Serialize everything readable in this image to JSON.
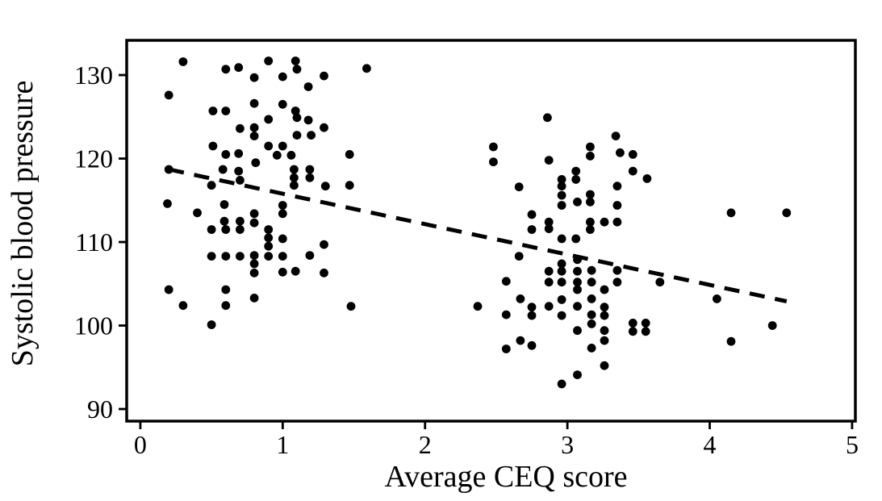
{
  "figure": {
    "background": "#ffffff",
    "ink_color": "#000000"
  },
  "chart_data": {
    "type": "scatter",
    "title": "",
    "xlabel": "Average CEQ score",
    "ylabel": "Systolic blood pressure",
    "x_ticks": [
      "0",
      "1",
      "2",
      "3",
      "4",
      "5"
    ],
    "x_tick_values": [
      0,
      1,
      2,
      3,
      4,
      5
    ],
    "y_ticks": [
      "90",
      "100",
      "110",
      "120",
      "130"
    ],
    "y_tick_values": [
      90,
      100,
      110,
      120,
      130
    ],
    "xlim": [
      -0.096,
      5.023
    ],
    "ylim": [
      88.55,
      134.16
    ],
    "grid": false,
    "legend": null,
    "marker": {
      "shape": "circle",
      "color": "#000000",
      "radius": 5.4
    },
    "trendline": {
      "style": "dashed",
      "color": "#000000",
      "width": 5,
      "dash": "19 13",
      "x1": 0.2,
      "y1": 118.7,
      "x2": 4.54,
      "y2": 102.9
    },
    "points": [
      [
        0.3,
        131.6
      ],
      [
        0.9,
        131.7
      ],
      [
        1.09,
        131.7
      ],
      [
        0.6,
        130.7
      ],
      [
        0.69,
        130.9
      ],
      [
        1.1,
        130.7
      ],
      [
        1.59,
        130.8
      ],
      [
        0.8,
        129.7
      ],
      [
        1.0,
        129.8
      ],
      [
        1.29,
        129.9
      ],
      [
        1.18,
        128.6
      ],
      [
        0.2,
        127.6
      ],
      [
        0.8,
        126.6
      ],
      [
        1.0,
        126.5
      ],
      [
        0.51,
        125.7
      ],
      [
        0.6,
        125.7
      ],
      [
        1.09,
        125.7
      ],
      [
        1.1,
        124.9
      ],
      [
        0.9,
        124.7
      ],
      [
        1.18,
        124.6
      ],
      [
        0.7,
        123.6
      ],
      [
        0.8,
        123.7
      ],
      [
        1.29,
        123.7
      ],
      [
        1.1,
        122.8
      ],
      [
        1.2,
        122.8
      ],
      [
        0.8,
        122.7
      ],
      [
        0.51,
        121.5
      ],
      [
        0.9,
        121.5
      ],
      [
        1.0,
        121.5
      ],
      [
        0.6,
        120.5
      ],
      [
        0.69,
        120.6
      ],
      [
        0.96,
        120.4
      ],
      [
        1.06,
        120.4
      ],
      [
        1.47,
        120.5
      ],
      [
        0.81,
        119.5
      ],
      [
        0.2,
        118.7
      ],
      [
        0.58,
        118.7
      ],
      [
        0.69,
        118.5
      ],
      [
        1.08,
        118.7
      ],
      [
        1.19,
        118.7
      ],
      [
        1.08,
        117.7
      ],
      [
        1.19,
        117.7
      ],
      [
        0.7,
        117.4
      ],
      [
        0.5,
        116.8
      ],
      [
        1.08,
        116.8
      ],
      [
        1.3,
        116.7
      ],
      [
        1.47,
        116.8
      ],
      [
        0.19,
        114.6
      ],
      [
        0.59,
        114.5
      ],
      [
        1.0,
        114.4
      ],
      [
        0.4,
        113.5
      ],
      [
        0.8,
        113.4
      ],
      [
        1.0,
        113.4
      ],
      [
        0.59,
        112.5
      ],
      [
        0.7,
        112.5
      ],
      [
        0.8,
        112.3
      ],
      [
        0.5,
        111.5
      ],
      [
        0.6,
        111.5
      ],
      [
        0.7,
        111.5
      ],
      [
        0.9,
        111.5
      ],
      [
        0.9,
        110.5
      ],
      [
        1.0,
        110.4
      ],
      [
        0.9,
        109.5
      ],
      [
        1.29,
        109.7
      ],
      [
        0.5,
        108.3
      ],
      [
        0.6,
        108.3
      ],
      [
        0.7,
        108.3
      ],
      [
        0.8,
        108.4
      ],
      [
        0.9,
        108.3
      ],
      [
        1.0,
        108.3
      ],
      [
        1.19,
        108.4
      ],
      [
        0.8,
        107.4
      ],
      [
        0.8,
        106.3
      ],
      [
        1.0,
        106.4
      ],
      [
        1.09,
        106.5
      ],
      [
        1.29,
        106.3
      ],
      [
        0.2,
        104.3
      ],
      [
        0.6,
        104.3
      ],
      [
        0.8,
        103.3
      ],
      [
        0.3,
        102.4
      ],
      [
        0.6,
        102.4
      ],
      [
        1.48,
        102.3
      ],
      [
        0.5,
        100.1
      ],
      [
        2.86,
        124.9
      ],
      [
        3.34,
        122.7
      ],
      [
        2.48,
        121.4
      ],
      [
        3.16,
        121.4
      ],
      [
        3.37,
        120.7
      ],
      [
        3.46,
        120.5
      ],
      [
        2.48,
        119.6
      ],
      [
        3.16,
        120.3
      ],
      [
        2.87,
        119.8
      ],
      [
        3.46,
        118.5
      ],
      [
        3.06,
        118.5
      ],
      [
        3.56,
        117.6
      ],
      [
        2.96,
        117.5
      ],
      [
        3.06,
        117.5
      ],
      [
        2.96,
        116.7
      ],
      [
        3.35,
        116.7
      ],
      [
        2.66,
        116.6
      ],
      [
        3.16,
        115.7
      ],
      [
        2.96,
        115.6
      ],
      [
        3.07,
        114.8
      ],
      [
        3.16,
        114.8
      ],
      [
        2.96,
        114.4
      ],
      [
        3.35,
        114.4
      ],
      [
        2.75,
        113.3
      ],
      [
        2.87,
        112.4
      ],
      [
        3.16,
        112.4
      ],
      [
        3.26,
        112.4
      ],
      [
        3.35,
        112.4
      ],
      [
        2.87,
        111.6
      ],
      [
        2.75,
        111.5
      ],
      [
        3.16,
        111.5
      ],
      [
        2.96,
        110.4
      ],
      [
        3.06,
        110.4
      ],
      [
        2.66,
        108.3
      ],
      [
        2.96,
        107.4
      ],
      [
        3.07,
        107.9
      ],
      [
        3.17,
        106.6
      ],
      [
        3.35,
        106.6
      ],
      [
        2.87,
        106.5
      ],
      [
        2.96,
        106.5
      ],
      [
        3.07,
        106.5
      ],
      [
        2.57,
        105.3
      ],
      [
        2.87,
        105.2
      ],
      [
        2.96,
        105.2
      ],
      [
        3.07,
        105.2
      ],
      [
        3.17,
        105.2
      ],
      [
        3.35,
        105.2
      ],
      [
        3.65,
        105.2
      ],
      [
        3.07,
        104.3
      ],
      [
        3.26,
        104.3
      ],
      [
        2.67,
        103.2
      ],
      [
        2.96,
        103.1
      ],
      [
        3.17,
        103.2
      ],
      [
        2.37,
        102.3
      ],
      [
        2.75,
        102.2
      ],
      [
        2.87,
        102.3
      ],
      [
        3.07,
        102.3
      ],
      [
        3.26,
        102.2
      ],
      [
        2.57,
        101.3
      ],
      [
        2.75,
        101.2
      ],
      [
        2.96,
        101.2
      ],
      [
        3.17,
        101.3
      ],
      [
        3.26,
        101.2
      ],
      [
        3.17,
        100.2
      ],
      [
        3.46,
        100.3
      ],
      [
        3.55,
        100.3
      ],
      [
        3.07,
        99.4
      ],
      [
        3.26,
        99.4
      ],
      [
        3.46,
        99.3
      ],
      [
        3.55,
        99.3
      ],
      [
        2.67,
        98.2
      ],
      [
        3.26,
        98.2
      ],
      [
        2.75,
        97.6
      ],
      [
        2.57,
        97.2
      ],
      [
        3.17,
        97.3
      ],
      [
        3.26,
        95.2
      ],
      [
        3.07,
        94.1
      ],
      [
        2.96,
        93.0
      ],
      [
        4.15,
        113.5
      ],
      [
        4.54,
        113.5
      ],
      [
        4.05,
        103.2
      ],
      [
        4.44,
        100.0
      ],
      [
        4.15,
        98.1
      ]
    ]
  }
}
